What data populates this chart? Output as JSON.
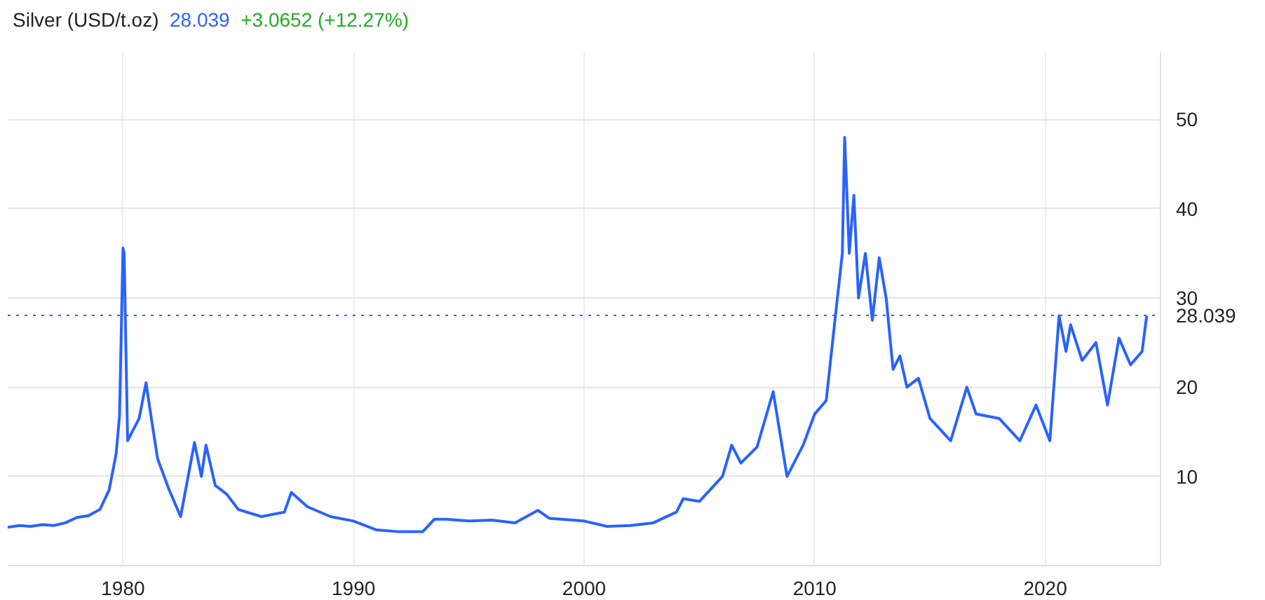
{
  "chart_data": {
    "type": "line",
    "title": "Silver (USD/t.oz)",
    "annotations": [
      "28.039",
      "+3.0652 (+12.27%)"
    ],
    "x": [
      1975.0,
      1975.5,
      1976.0,
      1976.5,
      1977.0,
      1977.5,
      1978.0,
      1978.5,
      1979.0,
      1979.4,
      1979.7,
      1979.85,
      1980.0,
      1980.05,
      1980.2,
      1980.5,
      1980.7,
      1981.0,
      1981.2,
      1981.5,
      1982.0,
      1982.5,
      1983.1,
      1983.4,
      1983.6,
      1984.0,
      1984.5,
      1985.0,
      1986.0,
      1987.0,
      1987.3,
      1988.0,
      1989.0,
      1990.0,
      1991.0,
      1992.0,
      1993.0,
      1993.5,
      1994.0,
      1995.0,
      1996.0,
      1997.0,
      1998.0,
      1998.5,
      1999.0,
      2000.0,
      2001.0,
      2002.0,
      2003.0,
      2004.0,
      2004.3,
      2005.0,
      2006.0,
      2006.4,
      2006.8,
      2007.5,
      2008.2,
      2008.8,
      2009.5,
      2010.0,
      2010.5,
      2010.9,
      2011.2,
      2011.3,
      2011.5,
      2011.7,
      2011.9,
      2012.2,
      2012.5,
      2012.8,
      2013.1,
      2013.4,
      2013.7,
      2014.0,
      2014.5,
      2015.0,
      2015.9,
      2016.6,
      2017.0,
      2018.0,
      2018.9,
      2019.6,
      2020.2,
      2020.6,
      2020.9,
      2021.1,
      2021.6,
      2022.2,
      2022.7,
      2023.2,
      2023.7,
      2024.2,
      2024.4
    ],
    "series": [
      {
        "color": "#2962ff",
        "values": [
          4.3,
          4.5,
          4.4,
          4.6,
          4.5,
          4.8,
          5.4,
          5.6,
          6.3,
          8.5,
          12.5,
          16.8,
          35.6,
          35.0,
          14.0,
          15.5,
          16.5,
          20.5,
          17.0,
          12.0,
          8.5,
          5.5,
          13.8,
          10.0,
          13.5,
          9.0,
          8.0,
          6.3,
          5.5,
          6.0,
          8.2,
          6.6,
          5.5,
          5.0,
          4.0,
          3.8,
          3.8,
          5.2,
          5.2,
          5.0,
          5.1,
          4.8,
          6.2,
          5.3,
          5.2,
          5.0,
          4.4,
          4.5,
          4.8,
          6.0,
          7.5,
          7.2,
          10.0,
          13.5,
          11.5,
          13.3,
          19.5,
          10.0,
          13.5,
          17.0,
          18.5,
          28.0,
          35.0,
          48.0,
          35.0,
          41.5,
          30.0,
          35.0,
          27.5,
          34.5,
          30.0,
          22.0,
          23.5,
          20.0,
          21.0,
          16.5,
          14.0,
          20.0,
          17.0,
          16.5,
          14.0,
          18.0,
          14.0,
          28.0,
          24.0,
          27.0,
          23.0,
          25.0,
          18.0,
          25.5,
          22.5,
          24.0,
          28.0
        ]
      }
    ],
    "xlim": [
      1975,
      2025
    ],
    "xticks": [
      1980,
      1990,
      2000,
      2010,
      2020
    ],
    "ylim": [
      0,
      57.5
    ],
    "yticks": [
      10,
      20,
      30,
      40,
      50
    ],
    "ref_lines": [
      {
        "axis": "y",
        "value": 28.039,
        "label": "28.039",
        "color": "#2962ff",
        "line_style": "dotted"
      }
    ],
    "grid": true,
    "marker": "none",
    "line_style": "solid"
  }
}
